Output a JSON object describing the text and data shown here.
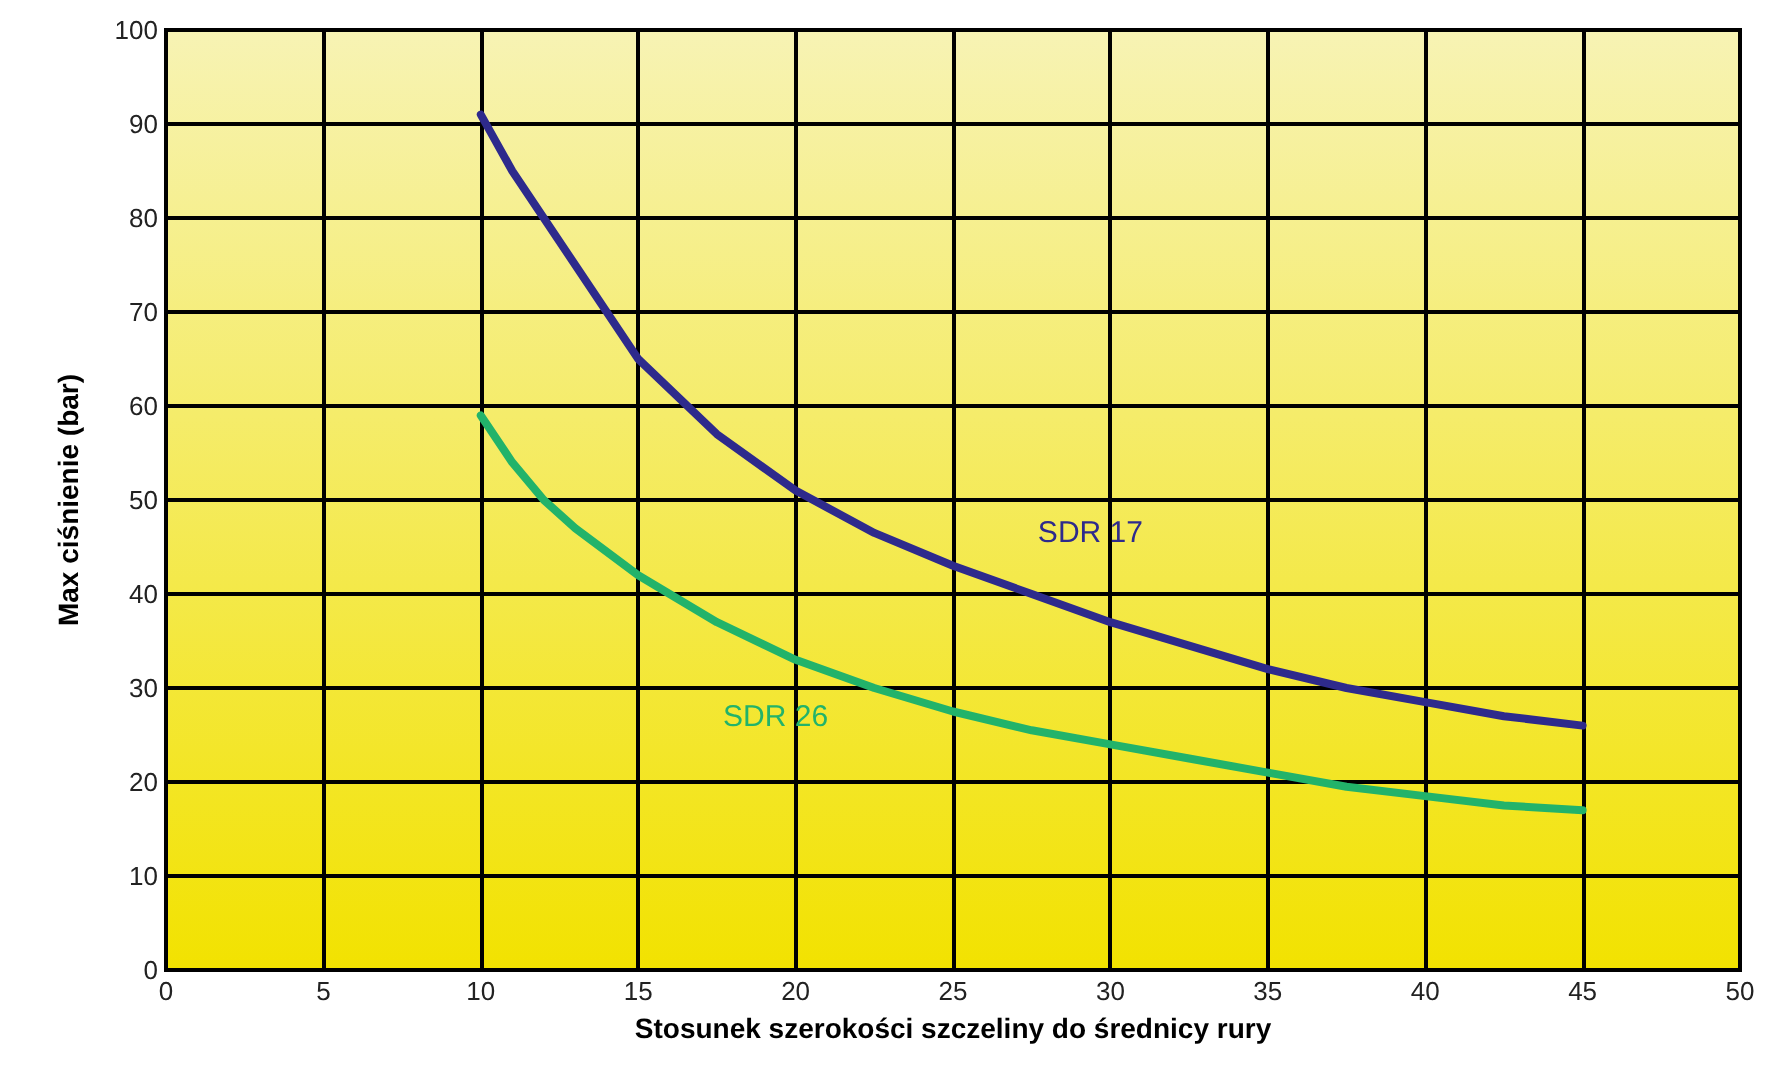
{
  "chart_data": {
    "type": "line",
    "xlabel": "Stosunek szerokości szczeliny do średnicy rury",
    "ylabel": "Max ciśnienie (bar)",
    "xlim": [
      0,
      50
    ],
    "xticks": [
      0,
      5,
      10,
      15,
      20,
      25,
      30,
      35,
      40,
      45,
      50
    ],
    "ylim": [
      0,
      100
    ],
    "yticks": [
      0,
      10,
      20,
      30,
      40,
      50,
      60,
      70,
      80,
      90,
      100
    ],
    "grid": true,
    "legend": false,
    "marker": "none",
    "line_style": "solid",
    "series": [
      {
        "name": "SDR 17",
        "color": "#2e2a8c",
        "x": [
          10,
          11,
          12,
          13,
          15,
          17.5,
          20,
          22.5,
          25,
          27.5,
          30,
          32.5,
          35,
          37.5,
          40,
          42.5,
          45
        ],
        "values": [
          91,
          85,
          80,
          75,
          65,
          57,
          51,
          46.5,
          43,
          40,
          37,
          34.5,
          32,
          30,
          28.5,
          27,
          26
        ]
      },
      {
        "name": "SDR 26",
        "color": "#22b36a",
        "x": [
          10,
          11,
          12,
          13,
          15,
          17.5,
          20,
          22.5,
          25,
          27.5,
          30,
          32.5,
          35,
          37.5,
          40,
          42.5,
          45
        ],
        "values": [
          59,
          54,
          50,
          47,
          42,
          37,
          33,
          30,
          27.5,
          25.5,
          24,
          22.5,
          21,
          19.5,
          18.5,
          17.5,
          17
        ]
      }
    ]
  }
}
